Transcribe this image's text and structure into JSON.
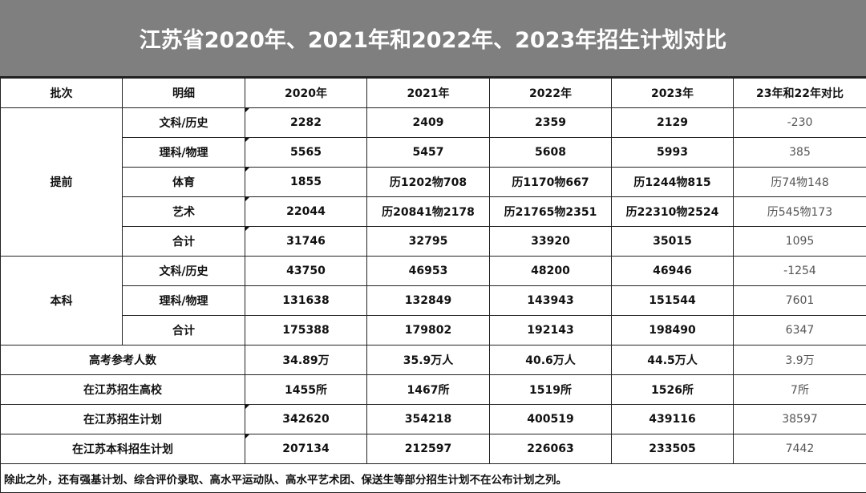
{
  "title": "江苏省2020年、2021年和2022年、2023年招生计划对比",
  "headers": [
    "批次",
    "明细",
    "2020年",
    "2021年",
    "2022年",
    "2023年",
    "23年和22年对比"
  ],
  "groups": [
    {
      "batch": "提前",
      "rows": [
        {
          "detail": "文科/历史",
          "values": [
            "2282",
            "2409",
            "2359",
            "2129"
          ],
          "compare": "-230"
        },
        {
          "detail": "理科/物理",
          "values": [
            "5565",
            "5457",
            "5608",
            "5993"
          ],
          "compare": "385"
        },
        {
          "detail": "体育",
          "values": [
            "1855",
            "历1202物708",
            "历1170物667",
            "历1244物815"
          ],
          "compare": "历74物148"
        },
        {
          "detail": "艺术",
          "values": [
            "22044",
            "历20841物2178",
            "历21765物2351",
            "历22310物2524"
          ],
          "compare": "历545物173"
        },
        {
          "detail": "合计",
          "values": [
            "31746",
            "32795",
            "33920",
            "35015"
          ],
          "compare": "1095"
        }
      ]
    },
    {
      "batch": "本科",
      "rows": [
        {
          "detail": "文科/历史",
          "values": [
            "43750",
            "46953",
            "48200",
            "46946"
          ],
          "compare": "-1254"
        },
        {
          "detail": "理科/物理",
          "values": [
            "131638",
            "132849",
            "143943",
            "151544"
          ],
          "compare": "7601"
        },
        {
          "detail": "合计",
          "values": [
            "175388",
            "179802",
            "192143",
            "198490"
          ],
          "compare": "6347"
        }
      ]
    }
  ],
  "summary": [
    {
      "label": "高考参考人数",
      "values": [
        "34.89万",
        "35.9万人",
        "40.6万人",
        "44.5万人"
      ],
      "compare": "3.9万"
    },
    {
      "label": "在江苏招生高校",
      "values": [
        "1455所",
        "1467所",
        "1519所",
        "1526所"
      ],
      "compare": "7所"
    },
    {
      "label": "在江苏招生计划",
      "values": [
        "342620",
        "354218",
        "400519",
        "439116"
      ],
      "compare": "38597"
    },
    {
      "label": "在江苏本科招生计划",
      "values": [
        "207134",
        "212597",
        "226063",
        "233505"
      ],
      "compare": "7442"
    }
  ],
  "note": "除此之外，还有强基计划、综合评价录取、高水平运动队、高水平艺术团、保送生等部分招生计划不在公布计划之列。"
}
